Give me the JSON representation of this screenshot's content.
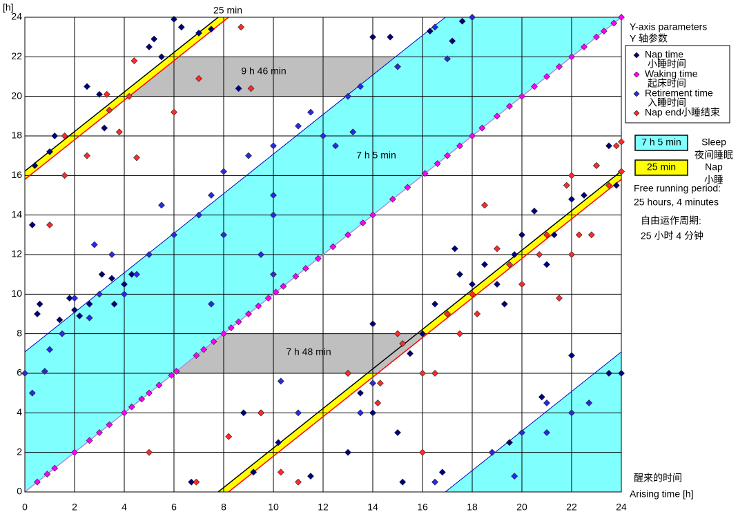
{
  "chart_data": {
    "type": "scatter",
    "y_axis_label": "[h]",
    "x_axis_label": "Arising time [h]",
    "x_axis_label_cn": "醒来的时间",
    "xlim": [
      0,
      24
    ],
    "ylim": [
      0,
      24
    ],
    "xticks": [
      0,
      2,
      4,
      6,
      8,
      10,
      12,
      14,
      16,
      18,
      20,
      22,
      24
    ],
    "yticks": [
      0,
      2,
      4,
      6,
      8,
      10,
      12,
      14,
      16,
      18,
      20,
      22,
      24
    ],
    "grid": true,
    "annotations": [
      "25 min",
      "9 h 46 min",
      "7 h 5 min",
      "7 h 48 min"
    ],
    "legend_title": "Y-axis parameters",
    "legend_title_cn": "Y 轴参数",
    "series": [
      {
        "name": "Nap time",
        "name_cn": "小睡时间",
        "color": "#00007f",
        "x": [
          0.3,
          0.4,
          0.5,
          0.6,
          1,
          1.2,
          1.4,
          1.8,
          2,
          2.2,
          2.5,
          2.6,
          3,
          3.1,
          3.2,
          3.5,
          3.6,
          4,
          4.3,
          5,
          5.2,
          5.5,
          6,
          6.3,
          7,
          7.5,
          8.6,
          8.8,
          9.2,
          10.2,
          13,
          13.5,
          14,
          14,
          15,
          15.5,
          16,
          16.5,
          17,
          17.5,
          17.3,
          18,
          18.5,
          19,
          19.3,
          19.7,
          20,
          20.5,
          21,
          21.3,
          22,
          22.5,
          23,
          23.5,
          24,
          23.8,
          24,
          23.5,
          22,
          20.8,
          19.5,
          18.8,
          16.8,
          15.2,
          11.5,
          13,
          6.7,
          14.7,
          14,
          17.6,
          17.2,
          16.3
        ],
        "values": [
          13.5,
          16.5,
          9,
          9.5,
          17.2,
          18,
          8.7,
          9.8,
          9.2,
          8.9,
          20.5,
          9.5,
          20.1,
          11,
          18.4,
          10.8,
          9.5,
          10.5,
          11,
          22.5,
          22.9,
          22,
          23.9,
          23.5,
          23.2,
          23.4,
          20.4,
          4,
          1,
          2.5,
          6,
          5,
          8.5,
          4,
          3,
          7,
          8,
          9.5,
          9,
          11,
          12.3,
          10.5,
          11.5,
          10.5,
          9.5,
          12,
          13,
          14.2,
          11.5,
          13,
          14.8,
          15,
          16.5,
          17.5,
          16.2,
          15.5,
          6,
          6,
          6.9,
          4.8,
          2.5,
          2,
          1,
          0.5,
          0.8,
          2,
          0.5,
          23,
          23,
          23.8,
          22.8,
          23.3
        ]
      },
      {
        "name": "Waking time",
        "name_cn": "起床时间",
        "color": "#ff00ff",
        "x": [
          0.5,
          0.9,
          1.2,
          2,
          2.6,
          3,
          3.4,
          4,
          4.3,
          4.7,
          5,
          5.4,
          5.9,
          6.1,
          6.9,
          7.2,
          7.6,
          8,
          8.3,
          8.6,
          9,
          9.4,
          9.8,
          10.1,
          10.4,
          10.9,
          11.3,
          11.8,
          12.4,
          13,
          13.6,
          14,
          14.8,
          15.4,
          16.1,
          16.6,
          17,
          17.5,
          18,
          18.4,
          19,
          19.5,
          20,
          20.5,
          21,
          21.5,
          22,
          22.5,
          23,
          23.3,
          23.7,
          24
        ],
        "values": [
          0.5,
          0.9,
          1.2,
          2,
          2.6,
          3,
          3.4,
          4,
          4.3,
          4.7,
          5,
          5.4,
          5.9,
          6.1,
          6.9,
          7.2,
          7.6,
          8,
          8.3,
          8.6,
          9,
          9.4,
          9.8,
          10.1,
          10.4,
          10.9,
          11.3,
          11.8,
          12.4,
          13,
          13.6,
          14,
          14.8,
          15.4,
          16.1,
          16.6,
          17,
          17.5,
          18,
          18.4,
          19,
          19.5,
          20,
          20.5,
          21,
          21.5,
          22,
          22.5,
          23,
          23.3,
          23.7,
          24
        ]
      },
      {
        "name": "Retirement time",
        "name_cn": "入睡时间",
        "color": "#2a2ae0",
        "x": [
          0,
          0.3,
          0.8,
          1,
          2,
          3,
          4.5,
          5,
          6,
          7,
          7.5,
          8,
          9,
          10,
          11,
          11.5,
          12,
          12.5,
          13,
          13.2,
          13.5,
          15,
          16.5,
          17,
          18,
          8,
          10,
          10,
          10,
          9.5,
          7.5,
          5.5,
          4,
          3.5,
          1.5,
          2.6,
          2.8,
          20,
          21,
          22,
          22.7,
          19.7,
          21,
          18.8,
          13.5,
          14,
          11,
          10.3,
          9.5,
          16.5
        ],
        "values": [
          6,
          5,
          6.1,
          7.2,
          9.8,
          10,
          11,
          12,
          13,
          14,
          15,
          16.2,
          17,
          17.5,
          18.5,
          19.2,
          18,
          17.5,
          20,
          18.2,
          20.5,
          21.5,
          23.5,
          21.9,
          24,
          13,
          14,
          15,
          11,
          12,
          9.5,
          14.5,
          10,
          12,
          8,
          8.8,
          12.5,
          3,
          4.5,
          4,
          4.5,
          0.8,
          3,
          2,
          4,
          5.5,
          4,
          5.6,
          4,
          0.5
        ]
      },
      {
        "name": "Nap end小睡结束",
        "color": "#ff2a2a",
        "x": [
          1,
          1.6,
          1.6,
          2.5,
          3.3,
          3.4,
          3.8,
          4.2,
          4.4,
          4.5,
          6,
          7,
          8.7,
          9.1,
          8.2,
          9.5,
          10.3,
          5,
          6.9,
          11,
          13,
          14.2,
          14.3,
          15,
          15.2,
          16,
          16,
          16.5,
          17,
          17.5,
          18,
          18.2,
          18.5,
          19,
          19.5,
          20,
          20.7,
          21,
          21.5,
          22,
          22,
          22.3,
          22.8,
          23,
          23.5,
          23.8,
          24,
          24,
          21.8
        ],
        "values": [
          13.5,
          16,
          18,
          17,
          20.1,
          19.3,
          18.2,
          20,
          21.8,
          16.9,
          19.2,
          20.9,
          23.5,
          20.4,
          2.8,
          4,
          1,
          2,
          0.5,
          0.5,
          6,
          4.5,
          5.5,
          8,
          7.5,
          6,
          2,
          6,
          9,
          8,
          10,
          9,
          14.5,
          12.3,
          11.5,
          10.5,
          12,
          13,
          9.8,
          16,
          12,
          13,
          13,
          16.5,
          15.5,
          17.5,
          17.7,
          16.2,
          15.5
        ]
      }
    ],
    "band_legend": [
      {
        "label": "7 h 5 min",
        "color": "#80ffff",
        "text": "Sleep",
        "text_cn": "夜间睡眠"
      },
      {
        "label": "25 min",
        "color": "#ffff00",
        "text": "Nap",
        "text_cn": "小睡"
      }
    ],
    "notes": [
      "Free running period:",
      "25 hours, 4 minutes",
      "自由运作周期:",
      "25 小时 4 分钟"
    ]
  }
}
